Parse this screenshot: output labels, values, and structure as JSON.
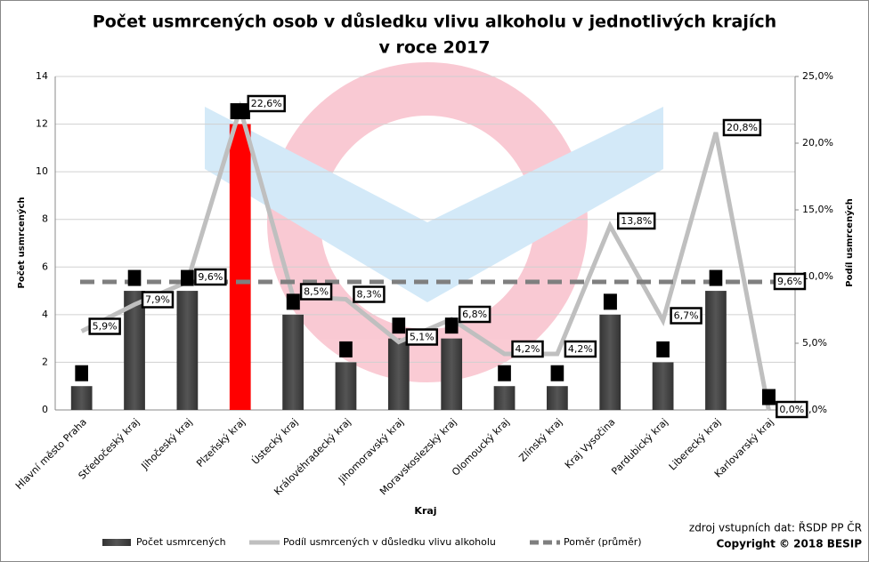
{
  "chart_data": {
    "type": "bar-line",
    "title": [
      "Počet usmrcených osob v důsledku vlivu alkoholu v jednotlivých krajích",
      "v roce 2017"
    ],
    "x_label": "Kraj",
    "y_label": "Počet usmrcených",
    "y2_label": "Podíl usmrcených",
    "categories": [
      "Hlavní město Praha",
      "Středočeský kraj",
      "Jihočeský kraj",
      "Plzeňský kraj",
      "Ústecký kraj",
      "Královéhradecký kraj",
      "Jihomoravský kraj",
      "Moravskoslezský kraj",
      "Olomoucký kraj",
      "Zlínský kraj",
      "Kraj Vysočina",
      "Pardubický kraj",
      "Liberecký kraj",
      "Karlovarský kraj"
    ],
    "series": [
      {
        "name": "Počet usmrcených",
        "kind": "bar",
        "color": "#555555",
        "bar_colors": [
          "#555555",
          "#555555",
          "#555555",
          "#ff0000",
          "#555555",
          "#555555",
          "#555555",
          "#555555",
          "#555555",
          "#555555",
          "#555555",
          "#555555",
          "#555555",
          "#555555"
        ],
        "values": [
          1,
          5,
          5,
          12,
          4,
          2,
          3,
          3,
          1,
          1,
          4,
          2,
          5,
          0
        ]
      },
      {
        "name": "Podíl usmrcených v důsledku vlivu alkoholu",
        "kind": "line",
        "axis": "y2",
        "color": "#bfbfbf",
        "values": [
          5.9,
          7.9,
          9.6,
          22.6,
          8.5,
          8.3,
          5.1,
          6.8,
          4.2,
          4.2,
          13.8,
          6.7,
          20.8,
          0.0
        ],
        "value_labels": [
          "5,9%",
          "7,9%",
          "9,6%",
          "22,6%",
          "8,5%",
          "8,3%",
          "5,1%",
          "6,8%",
          "4,2%",
          "4,2%",
          "13,8%",
          "6,7%",
          "20,8%",
          "0,0%"
        ]
      },
      {
        "name": "Poměr (průměr)",
        "kind": "dashed",
        "axis": "y2",
        "color": "#7f7f7f",
        "values": [
          9.6,
          9.6,
          9.6,
          9.6,
          9.6,
          9.6,
          9.6,
          9.6,
          9.6,
          9.6,
          9.6,
          9.6,
          9.6,
          9.6
        ],
        "value_labels": [
          null,
          null,
          null,
          null,
          null,
          null,
          null,
          null,
          null,
          null,
          null,
          null,
          null,
          "9,6%"
        ]
      }
    ],
    "ylim": [
      0,
      14
    ],
    "yticks": [
      0,
      2,
      4,
      6,
      8,
      10,
      12,
      14
    ],
    "y2lim": [
      0,
      25
    ],
    "y2ticks": [
      {
        "value": 0,
        "label": "0,0%"
      },
      {
        "value": 5,
        "label": "5,0%"
      },
      {
        "value": 10,
        "label": "10,0%"
      },
      {
        "value": 15,
        "label": "15,0%"
      },
      {
        "value": 20,
        "label": "20,0%"
      },
      {
        "value": 25,
        "label": "25,0%"
      }
    ],
    "grid": true,
    "legend": "bottom",
    "source": "zdroj vstupních dat: ŘSDP PP ČR",
    "copyright": "Copyright © 2018 BESIP"
  }
}
